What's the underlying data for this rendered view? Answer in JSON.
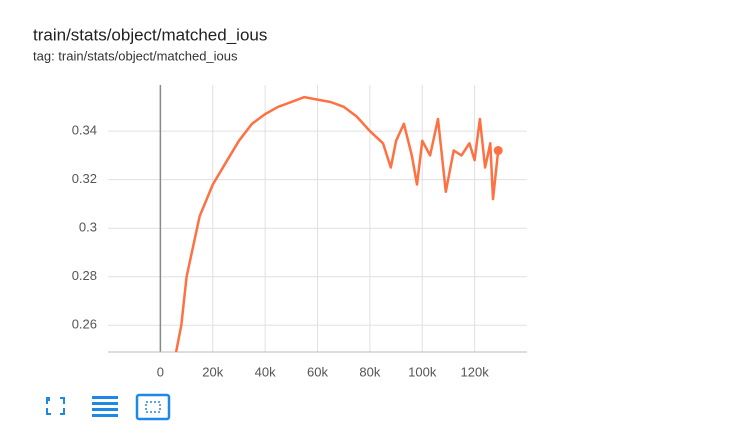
{
  "chart_data": {
    "type": "line",
    "title": "train/stats/object/matched_ious",
    "subtitle": "tag: train/stats/object/matched_ious",
    "x": [
      6000,
      8000,
      10000,
      12000,
      15000,
      20000,
      25000,
      30000,
      35000,
      40000,
      45000,
      50000,
      55000,
      60000,
      65000,
      70000,
      75000,
      80000,
      85000,
      88000,
      90000,
      93000,
      96000,
      98000,
      100000,
      103000,
      106000,
      109000,
      112000,
      115000,
      118000,
      120000,
      122000,
      124000,
      126000,
      127000,
      129000
    ],
    "values": [
      0.249,
      0.26,
      0.28,
      0.29,
      0.305,
      0.318,
      0.327,
      0.336,
      0.343,
      0.347,
      0.35,
      0.352,
      0.354,
      0.353,
      0.352,
      0.35,
      0.346,
      0.34,
      0.335,
      0.325,
      0.336,
      0.343,
      0.33,
      0.318,
      0.336,
      0.33,
      0.345,
      0.315,
      0.332,
      0.33,
      0.335,
      0.328,
      0.345,
      0.325,
      0.335,
      0.312,
      0.332
    ],
    "color": "#ff7043",
    "xlim": [
      -20000,
      140000
    ],
    "xticks": [
      0,
      {
        "value": 20000,
        "label": "20k"
      },
      {
        "value": 40000,
        "label": "40k"
      },
      {
        "value": 60000,
        "label": "60k"
      },
      {
        "value": 80000,
        "label": "80k"
      },
      {
        "value": 100000,
        "label": "100k"
      },
      {
        "value": 120000,
        "label": "120k"
      }
    ],
    "ylim": [
      0.249,
      0.359
    ],
    "yticks": [
      0.26,
      0.28,
      0.3,
      0.32,
      0.34
    ],
    "grid": true
  }
}
